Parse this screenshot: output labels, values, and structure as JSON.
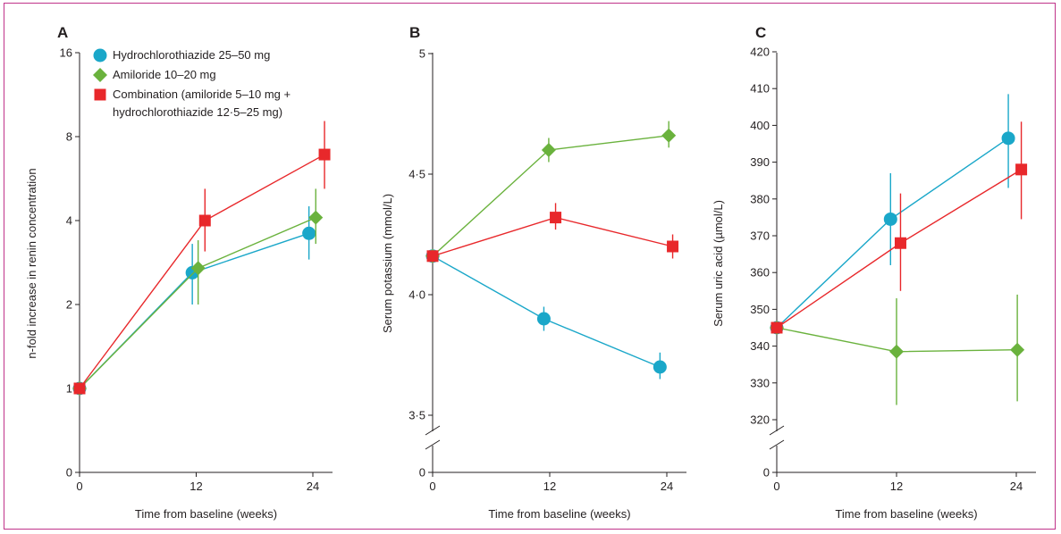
{
  "colors": {
    "hctz": "#1aa7c9",
    "amil": "#6ab23d",
    "combo": "#e8282b",
    "axis": "#231f20",
    "frame": "#c0338a"
  },
  "legend": {
    "items": [
      {
        "marker": "circle",
        "color": "#1aa7c9",
        "lines": [
          "Hydrochlorothiazide 25–50 mg"
        ]
      },
      {
        "marker": "diamond",
        "color": "#6ab23d",
        "lines": [
          "Amiloride 10–20 mg"
        ]
      },
      {
        "marker": "square",
        "color": "#e8282b",
        "lines": [
          "Combination (amiloride 5–10 mg +",
          "hydrochlorothiazide 12·5–25 mg)"
        ]
      }
    ]
  },
  "chart_data": [
    {
      "panel": "A",
      "type": "line",
      "xlabel": "Time from baseline (weeks)",
      "ylabel": "n-fold increase in renin concentration",
      "x_ticks": [
        "0",
        "12",
        "24"
      ],
      "y_ticks": [
        {
          "label": "0",
          "value": 0
        },
        {
          "label": "1",
          "value": 1
        },
        {
          "label": "2",
          "value": 2
        },
        {
          "label": "4",
          "value": 4
        },
        {
          "label": "8",
          "value": 8
        },
        {
          "label": "16",
          "value": 16
        }
      ],
      "y_scale": "log2 with zero break",
      "series": [
        {
          "name": "Hydrochlorothiazide 25–50 mg",
          "marker": "circle",
          "color": "#1aa7c9",
          "x": [
            0,
            11.6,
            23.6
          ],
          "y": [
            1.0,
            2.6,
            3.6
          ],
          "lo": [
            1.0,
            2.0,
            2.9
          ],
          "hi": [
            1.0,
            3.3,
            4.5
          ]
        },
        {
          "name": "Amiloride 10–20 mg",
          "marker": "diamond",
          "color": "#6ab23d",
          "x": [
            0,
            12.2,
            24.3
          ],
          "y": [
            1.0,
            2.7,
            4.1
          ],
          "lo": [
            1.0,
            2.0,
            3.3
          ],
          "hi": [
            1.0,
            3.4,
            5.2
          ]
        },
        {
          "name": "Combination (amiloride 5–10 mg + hydrochlorothiazide 12·5–25 mg)",
          "marker": "square",
          "color": "#e8282b",
          "x": [
            0,
            12.9,
            25.2
          ],
          "y": [
            1.0,
            4.0,
            6.9
          ],
          "lo": [
            1.0,
            3.1,
            5.2
          ],
          "hi": [
            1.0,
            5.2,
            9.1
          ]
        }
      ]
    },
    {
      "panel": "B",
      "type": "line",
      "xlabel": "Time from baseline (weeks)",
      "ylabel": "Serum potassium (mmol/L)",
      "x_ticks": [
        "0",
        "12",
        "24"
      ],
      "y_ticks": [
        {
          "label": "0",
          "value": 0
        },
        {
          "label": "3·5",
          "value": 3.5
        },
        {
          "label": "4·0",
          "value": 4.0
        },
        {
          "label": "4·5",
          "value": 4.5
        },
        {
          "label": "5",
          "value": 5.0
        }
      ],
      "y_scale": "linear 3.5–5 with zero break",
      "series": [
        {
          "name": "Hydrochlorothiazide 25–50 mg",
          "marker": "circle",
          "color": "#1aa7c9",
          "x": [
            0,
            11.4,
            23.3
          ],
          "y": [
            4.16,
            3.9,
            3.7
          ],
          "lo": [
            4.16,
            3.85,
            3.65
          ],
          "hi": [
            4.16,
            3.95,
            3.76
          ]
        },
        {
          "name": "Amiloride 10–20 mg",
          "marker": "diamond",
          "color": "#6ab23d",
          "x": [
            0,
            11.9,
            24.2
          ],
          "y": [
            4.16,
            4.6,
            4.66
          ],
          "lo": [
            4.16,
            4.55,
            4.61
          ],
          "hi": [
            4.16,
            4.65,
            4.72
          ]
        },
        {
          "name": "Combination (amiloride 5–10 mg + hydrochlorothiazide 12·5–25 mg)",
          "marker": "square",
          "color": "#e8282b",
          "x": [
            0,
            12.6,
            24.6
          ],
          "y": [
            4.16,
            4.32,
            4.2
          ],
          "lo": [
            4.16,
            4.27,
            4.15
          ],
          "hi": [
            4.16,
            4.38,
            4.25
          ]
        }
      ]
    },
    {
      "panel": "C",
      "type": "line",
      "xlabel": "Time from baseline (weeks)",
      "ylabel": "Serum uric acid (µmol/L)",
      "x_ticks": [
        "0",
        "12",
        "24"
      ],
      "y_ticks": [
        {
          "label": "0",
          "value": 0
        },
        {
          "label": "320",
          "value": 320
        },
        {
          "label": "330",
          "value": 330
        },
        {
          "label": "340",
          "value": 340
        },
        {
          "label": "350",
          "value": 350
        },
        {
          "label": "360",
          "value": 360
        },
        {
          "label": "370",
          "value": 370
        },
        {
          "label": "380",
          "value": 380
        },
        {
          "label": "390",
          "value": 390
        },
        {
          "label": "400",
          "value": 400
        },
        {
          "label": "410",
          "value": 410
        },
        {
          "label": "420",
          "value": 420
        }
      ],
      "y_scale": "linear 320–420 with zero break",
      "series": [
        {
          "name": "Hydrochlorothiazide 25–50 mg",
          "marker": "circle",
          "color": "#1aa7c9",
          "x": [
            0,
            11.4,
            23.2
          ],
          "y": [
            345,
            374.5,
            396.5
          ],
          "lo": [
            345,
            362,
            383
          ],
          "hi": [
            345,
            387,
            408.5
          ]
        },
        {
          "name": "Amiloride 10–20 mg",
          "marker": "diamond",
          "color": "#6ab23d",
          "x": [
            0,
            12.0,
            24.1
          ],
          "y": [
            345,
            338.5,
            339
          ],
          "lo": [
            345,
            324,
            325
          ],
          "hi": [
            345,
            353,
            354
          ]
        },
        {
          "name": "Combination (amiloride 5–10 mg + hydrochlorothiazide 12·5–25 mg)",
          "marker": "square",
          "color": "#e8282b",
          "x": [
            0,
            12.4,
            24.5
          ],
          "y": [
            345,
            368,
            388
          ],
          "lo": [
            345,
            355,
            374.5
          ],
          "hi": [
            345,
            381.5,
            401
          ]
        }
      ]
    }
  ]
}
